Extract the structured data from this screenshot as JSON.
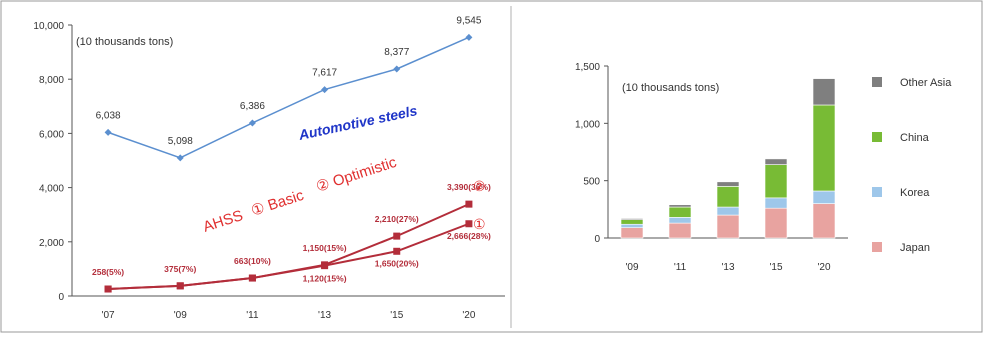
{
  "colors": {
    "blue": "#5b8fcf",
    "blue_text": "#1f35c8",
    "red": "#b32d3a",
    "red_text": "#e03030",
    "japan": "#e8a3a0",
    "korea": "#9ec7ea",
    "china": "#78bb35",
    "other_asia": "#7f7f7f",
    "axis": "#555555",
    "frame": "#9a9a9a"
  },
  "chart_data": [
    {
      "type": "line",
      "unit_label": "(10 thousands tons)",
      "x": [
        "'07",
        "'09",
        "'11",
        "'13",
        "'15",
        "'20"
      ],
      "ylim": [
        0,
        10000
      ],
      "yticks": [
        "0",
        "2,000",
        "4,000",
        "6,000",
        "8,000",
        "10,000"
      ],
      "annotations": {
        "automotive": "Automotive steels",
        "ahss": "AHSS",
        "basic": "① Basic",
        "optimistic": "② Optimistic",
        "circle_2": "②",
        "circle_1": "①"
      },
      "series": [
        {
          "name": "Automotive steels",
          "values": [
            6038,
            5098,
            6386,
            7617,
            8377,
            9545
          ],
          "labels": [
            "6,038",
            "5,098",
            "6,386",
            "7,617",
            "8,377",
            "9,545"
          ]
        },
        {
          "name": "② Optimistic",
          "values": [
            258,
            375,
            663,
            1150,
            2210,
            3390
          ],
          "labels": [
            "258(5%)",
            "375(7%)",
            "663(10%)",
            "1,150(15%)",
            "2,210(27%)",
            "3,390(36%)"
          ]
        },
        {
          "name": "① Basic",
          "values": [
            258,
            375,
            663,
            1120,
            1650,
            2666
          ],
          "labels": [
            "",
            "",
            "",
            "1,120(15%)",
            "1,650(20%)",
            "2,666(28%)"
          ]
        }
      ]
    },
    {
      "type": "bar",
      "stacked": true,
      "unit_label": "(10 thousands tons)",
      "categories": [
        "'09",
        "'11",
        "'13",
        "'15",
        "'20"
      ],
      "ylim": [
        0,
        1500
      ],
      "yticks": [
        "0",
        "500",
        "1,000",
        "1,500"
      ],
      "legend_position": "right",
      "series": [
        {
          "name": "Japan",
          "values": [
            90,
            130,
            200,
            260,
            300
          ]
        },
        {
          "name": "Korea",
          "values": [
            30,
            50,
            70,
            90,
            110
          ]
        },
        {
          "name": "China",
          "values": [
            40,
            90,
            180,
            290,
            750
          ]
        },
        {
          "name": "Other Asia",
          "values": [
            10,
            20,
            40,
            50,
            230
          ]
        }
      ]
    }
  ]
}
